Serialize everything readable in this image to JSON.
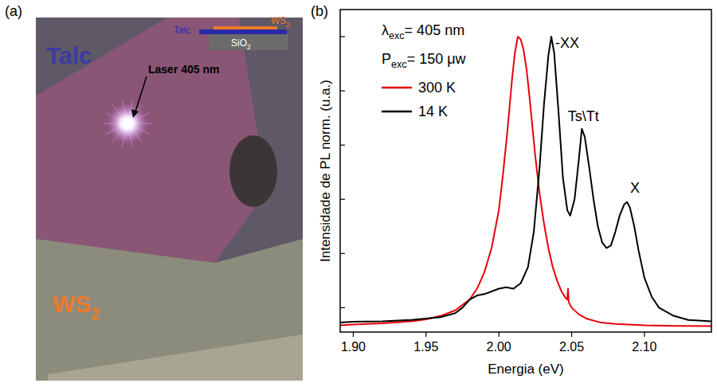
{
  "image_panel": {
    "label": "(a)",
    "regions": [
      {
        "text": "Talc",
        "color": "#3b3ba6"
      },
      {
        "text": "WS2",
        "subscript": "2",
        "color": "#ee7a2a"
      }
    ],
    "pointer": "Laser 405 nm",
    "inset": [
      {
        "text": "Talc",
        "color": "#2a2aa8"
      },
      {
        "text": "WS2",
        "subscript": "2",
        "color": "#ee7a2a"
      },
      {
        "text": "SiO2",
        "subscript": "2",
        "color": "#6b6b6b"
      }
    ]
  },
  "chart_data": {
    "type": "line",
    "label": "(b)",
    "x_label": "Energia (eV)",
    "y_label": "Intensidade de PL norm. (u.a.)",
    "xlim": [
      1.891,
      2.146
    ],
    "ylim": [
      -0.09,
      1.1
    ],
    "xticks": [
      {
        "value": 1.9,
        "label": "1.90"
      },
      1.95,
      {
        "value": 2.0,
        "label": "2.00"
      },
      2.05,
      {
        "value": 2.1,
        "label": "2.10"
      }
    ],
    "yticks": [
      0,
      0.2,
      0.4,
      0.6,
      0.8,
      1.0
    ],
    "tick_labels": "x",
    "legend": "upper left",
    "annotations": [
      {
        "text": "λexc= 405 nm",
        "subscript": "exc"
      },
      {
        "text": "Pexc= 150 μw",
        "subscript": "exc"
      }
    ],
    "series": [
      {
        "name": "300 K",
        "color": "#e8000b",
        "x": [
          1.891,
          1.9,
          1.92,
          1.94,
          1.95,
          1.96,
          1.97,
          1.98,
          1.985,
          1.99,
          1.995,
          2.0,
          2.003,
          2.006,
          2.009,
          2.011,
          2.013,
          2.015,
          2.017,
          2.019,
          2.021,
          2.023,
          2.025,
          2.028,
          2.031,
          2.034,
          2.037,
          2.04,
          2.043,
          2.046,
          2.047,
          2.0475,
          2.048,
          2.05,
          2.055,
          2.06,
          2.07,
          2.08,
          2.1,
          2.12,
          2.146
        ],
        "values": [
          -0.065,
          -0.062,
          -0.058,
          -0.05,
          -0.043,
          -0.03,
          -0.01,
          0.03,
          0.07,
          0.13,
          0.22,
          0.36,
          0.5,
          0.66,
          0.84,
          0.94,
          1.0,
          0.99,
          0.95,
          0.88,
          0.78,
          0.67,
          0.56,
          0.42,
          0.31,
          0.22,
          0.15,
          0.1,
          0.06,
          0.035,
          0.03,
          0.07,
          0.02,
          0.0,
          -0.025,
          -0.04,
          -0.055,
          -0.06,
          -0.065,
          -0.067,
          -0.068
        ]
      },
      {
        "name": "14 K",
        "color": "#000000",
        "x": [
          1.891,
          1.9,
          1.92,
          1.94,
          1.96,
          1.97,
          1.975,
          1.98,
          1.985,
          1.99,
          1.995,
          2.0,
          2.005,
          2.01,
          2.015,
          2.02,
          2.024,
          2.028,
          2.031,
          2.034,
          2.036,
          2.038,
          2.041,
          2.044,
          2.047,
          2.049,
          2.052,
          2.055,
          2.057,
          2.059,
          2.062,
          2.065,
          2.068,
          2.071,
          2.074,
          2.077,
          2.08,
          2.083,
          2.086,
          2.088,
          2.09,
          2.093,
          2.096,
          2.1,
          2.105,
          2.11,
          2.12,
          2.13,
          2.146
        ],
        "values": [
          -0.055,
          -0.052,
          -0.05,
          -0.045,
          -0.035,
          -0.02,
          0.0,
          0.03,
          0.045,
          0.05,
          0.06,
          0.07,
          0.075,
          0.07,
          0.09,
          0.15,
          0.28,
          0.52,
          0.75,
          0.93,
          1.0,
          0.94,
          0.72,
          0.48,
          0.36,
          0.34,
          0.4,
          0.55,
          0.66,
          0.63,
          0.52,
          0.4,
          0.3,
          0.24,
          0.22,
          0.23,
          0.28,
          0.34,
          0.38,
          0.39,
          0.37,
          0.3,
          0.21,
          0.11,
          0.04,
          0.0,
          -0.03,
          -0.045,
          -0.05
        ]
      }
    ],
    "peak_labels": [
      {
        "text": "-XX",
        "x": 2.036,
        "series": "14 K"
      },
      {
        "text": "Ts\\Tt",
        "x": 2.057,
        "series": "14 K"
      },
      {
        "text": "X",
        "x": 2.088,
        "series": "14 K"
      }
    ]
  }
}
